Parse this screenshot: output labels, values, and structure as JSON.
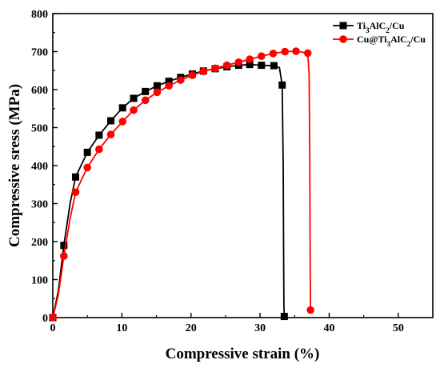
{
  "chart_data": {
    "type": "line",
    "xlabel": "Compressive strain (%)",
    "ylabel": "Compressive sress (MPa)",
    "xlim": [
      0,
      55
    ],
    "ylim": [
      0,
      800
    ],
    "xticks": [
      "0",
      "10",
      "20",
      "30",
      "40",
      "50"
    ],
    "yticks": [
      "0",
      "100",
      "200",
      "300",
      "400",
      "500",
      "600",
      "700",
      "800"
    ],
    "legend_position": "top-right",
    "grid": false,
    "series": [
      {
        "name_parts": [
          "Ti",
          "3",
          "AlC",
          "2",
          "/Cu"
        ],
        "color": "#000000",
        "marker": "square",
        "curve": [
          [
            0,
            0
          ],
          [
            0.8,
            70
          ],
          [
            1.6,
            190
          ],
          [
            2.5,
            300
          ],
          [
            3.3,
            370
          ],
          [
            5,
            435
          ],
          [
            6.7,
            480
          ],
          [
            8.4,
            518
          ],
          [
            10.1,
            552
          ],
          [
            11.7,
            577
          ],
          [
            13.4,
            595
          ],
          [
            15.1,
            610
          ],
          [
            16.8,
            622
          ],
          [
            18.5,
            632
          ],
          [
            20.2,
            641
          ],
          [
            21.8,
            649
          ],
          [
            23.5,
            655
          ],
          [
            25.2,
            660
          ],
          [
            26.9,
            664
          ],
          [
            28.5,
            666
          ],
          [
            30.2,
            664
          ],
          [
            32,
            663
          ],
          [
            32.8,
            658
          ],
          [
            33.2,
            612
          ],
          [
            33.35,
            400
          ],
          [
            33.4,
            200
          ],
          [
            33.45,
            30
          ],
          [
            33.5,
            3
          ]
        ],
        "markers": [
          [
            0,
            0
          ],
          [
            1.6,
            190
          ],
          [
            3.3,
            370
          ],
          [
            5,
            435
          ],
          [
            6.7,
            480
          ],
          [
            8.4,
            518
          ],
          [
            10.1,
            552
          ],
          [
            11.7,
            577
          ],
          [
            13.4,
            595
          ],
          [
            15.1,
            610
          ],
          [
            16.8,
            622
          ],
          [
            18.5,
            632
          ],
          [
            20.2,
            641
          ],
          [
            21.8,
            649
          ],
          [
            23.5,
            655
          ],
          [
            25.2,
            660
          ],
          [
            26.9,
            664
          ],
          [
            28.5,
            666
          ],
          [
            30.2,
            664
          ],
          [
            32,
            663
          ],
          [
            33.2,
            612
          ],
          [
            33.5,
            3
          ]
        ]
      },
      {
        "name_parts": [
          "Cu@Ti",
          "3",
          "AlC",
          "2",
          "/Cu"
        ],
        "color": "#ff0000",
        "marker": "circle",
        "curve": [
          [
            0,
            0
          ],
          [
            0.8,
            60
          ],
          [
            1.6,
            162
          ],
          [
            2.5,
            260
          ],
          [
            3.3,
            330
          ],
          [
            5,
            395
          ],
          [
            6.7,
            443
          ],
          [
            8.4,
            482
          ],
          [
            10.1,
            516
          ],
          [
            11.7,
            546
          ],
          [
            13.4,
            572
          ],
          [
            15.1,
            593
          ],
          [
            16.8,
            610
          ],
          [
            18.5,
            625
          ],
          [
            20.2,
            638
          ],
          [
            21.8,
            648
          ],
          [
            23.5,
            656
          ],
          [
            25.2,
            664
          ],
          [
            26.9,
            672
          ],
          [
            28.5,
            680
          ],
          [
            30.2,
            688
          ],
          [
            31.9,
            695
          ],
          [
            33.6,
            700
          ],
          [
            35.2,
            701
          ],
          [
            36.9,
            696
          ],
          [
            37.1,
            640
          ],
          [
            37.2,
            400
          ],
          [
            37.25,
            150
          ],
          [
            37.3,
            20
          ]
        ],
        "markers": [
          [
            0,
            0
          ],
          [
            1.6,
            162
          ],
          [
            3.3,
            330
          ],
          [
            5,
            395
          ],
          [
            6.7,
            443
          ],
          [
            8.4,
            482
          ],
          [
            10.1,
            516
          ],
          [
            11.7,
            546
          ],
          [
            13.4,
            572
          ],
          [
            15.1,
            593
          ],
          [
            16.8,
            610
          ],
          [
            18.5,
            625
          ],
          [
            20.2,
            638
          ],
          [
            21.8,
            648
          ],
          [
            23.5,
            656
          ],
          [
            25.2,
            664
          ],
          [
            26.9,
            672
          ],
          [
            28.5,
            680
          ],
          [
            30.2,
            688
          ],
          [
            31.9,
            695
          ],
          [
            33.6,
            700
          ],
          [
            35.2,
            701
          ],
          [
            36.9,
            696
          ],
          [
            37.3,
            20
          ]
        ]
      }
    ]
  }
}
